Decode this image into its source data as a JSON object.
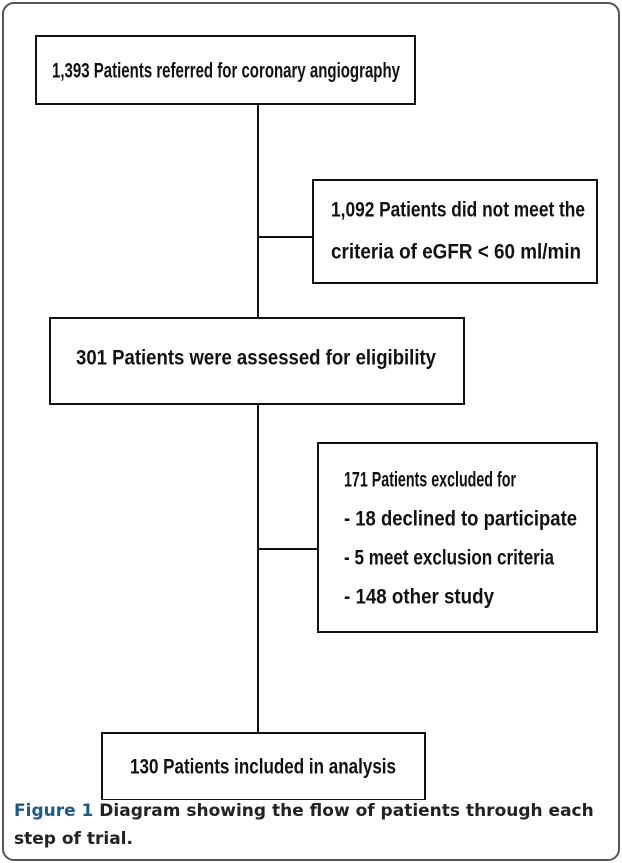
{
  "nodes": [
    {
      "lines": [
        "1,393 Patients referred for coronary angiography"
      ]
    },
    {
      "lines": [
        "1,092 Patients did not meet the",
        "criteria of eGFR < 60 ml/min"
      ]
    },
    {
      "lines": [
        "301 Patients were assessed for eligibility"
      ]
    },
    {
      "lines": [
        "171 Patients excluded for",
        "- 18 declined to participate",
        "- 5 meet exclusion criteria",
        "- 148 other study"
      ]
    },
    {
      "lines": [
        "130 Patients included in analysis"
      ]
    }
  ],
  "caption": {
    "label": "Figure 1",
    "text": "Diagram showing the flow of patients through each step of trial."
  }
}
